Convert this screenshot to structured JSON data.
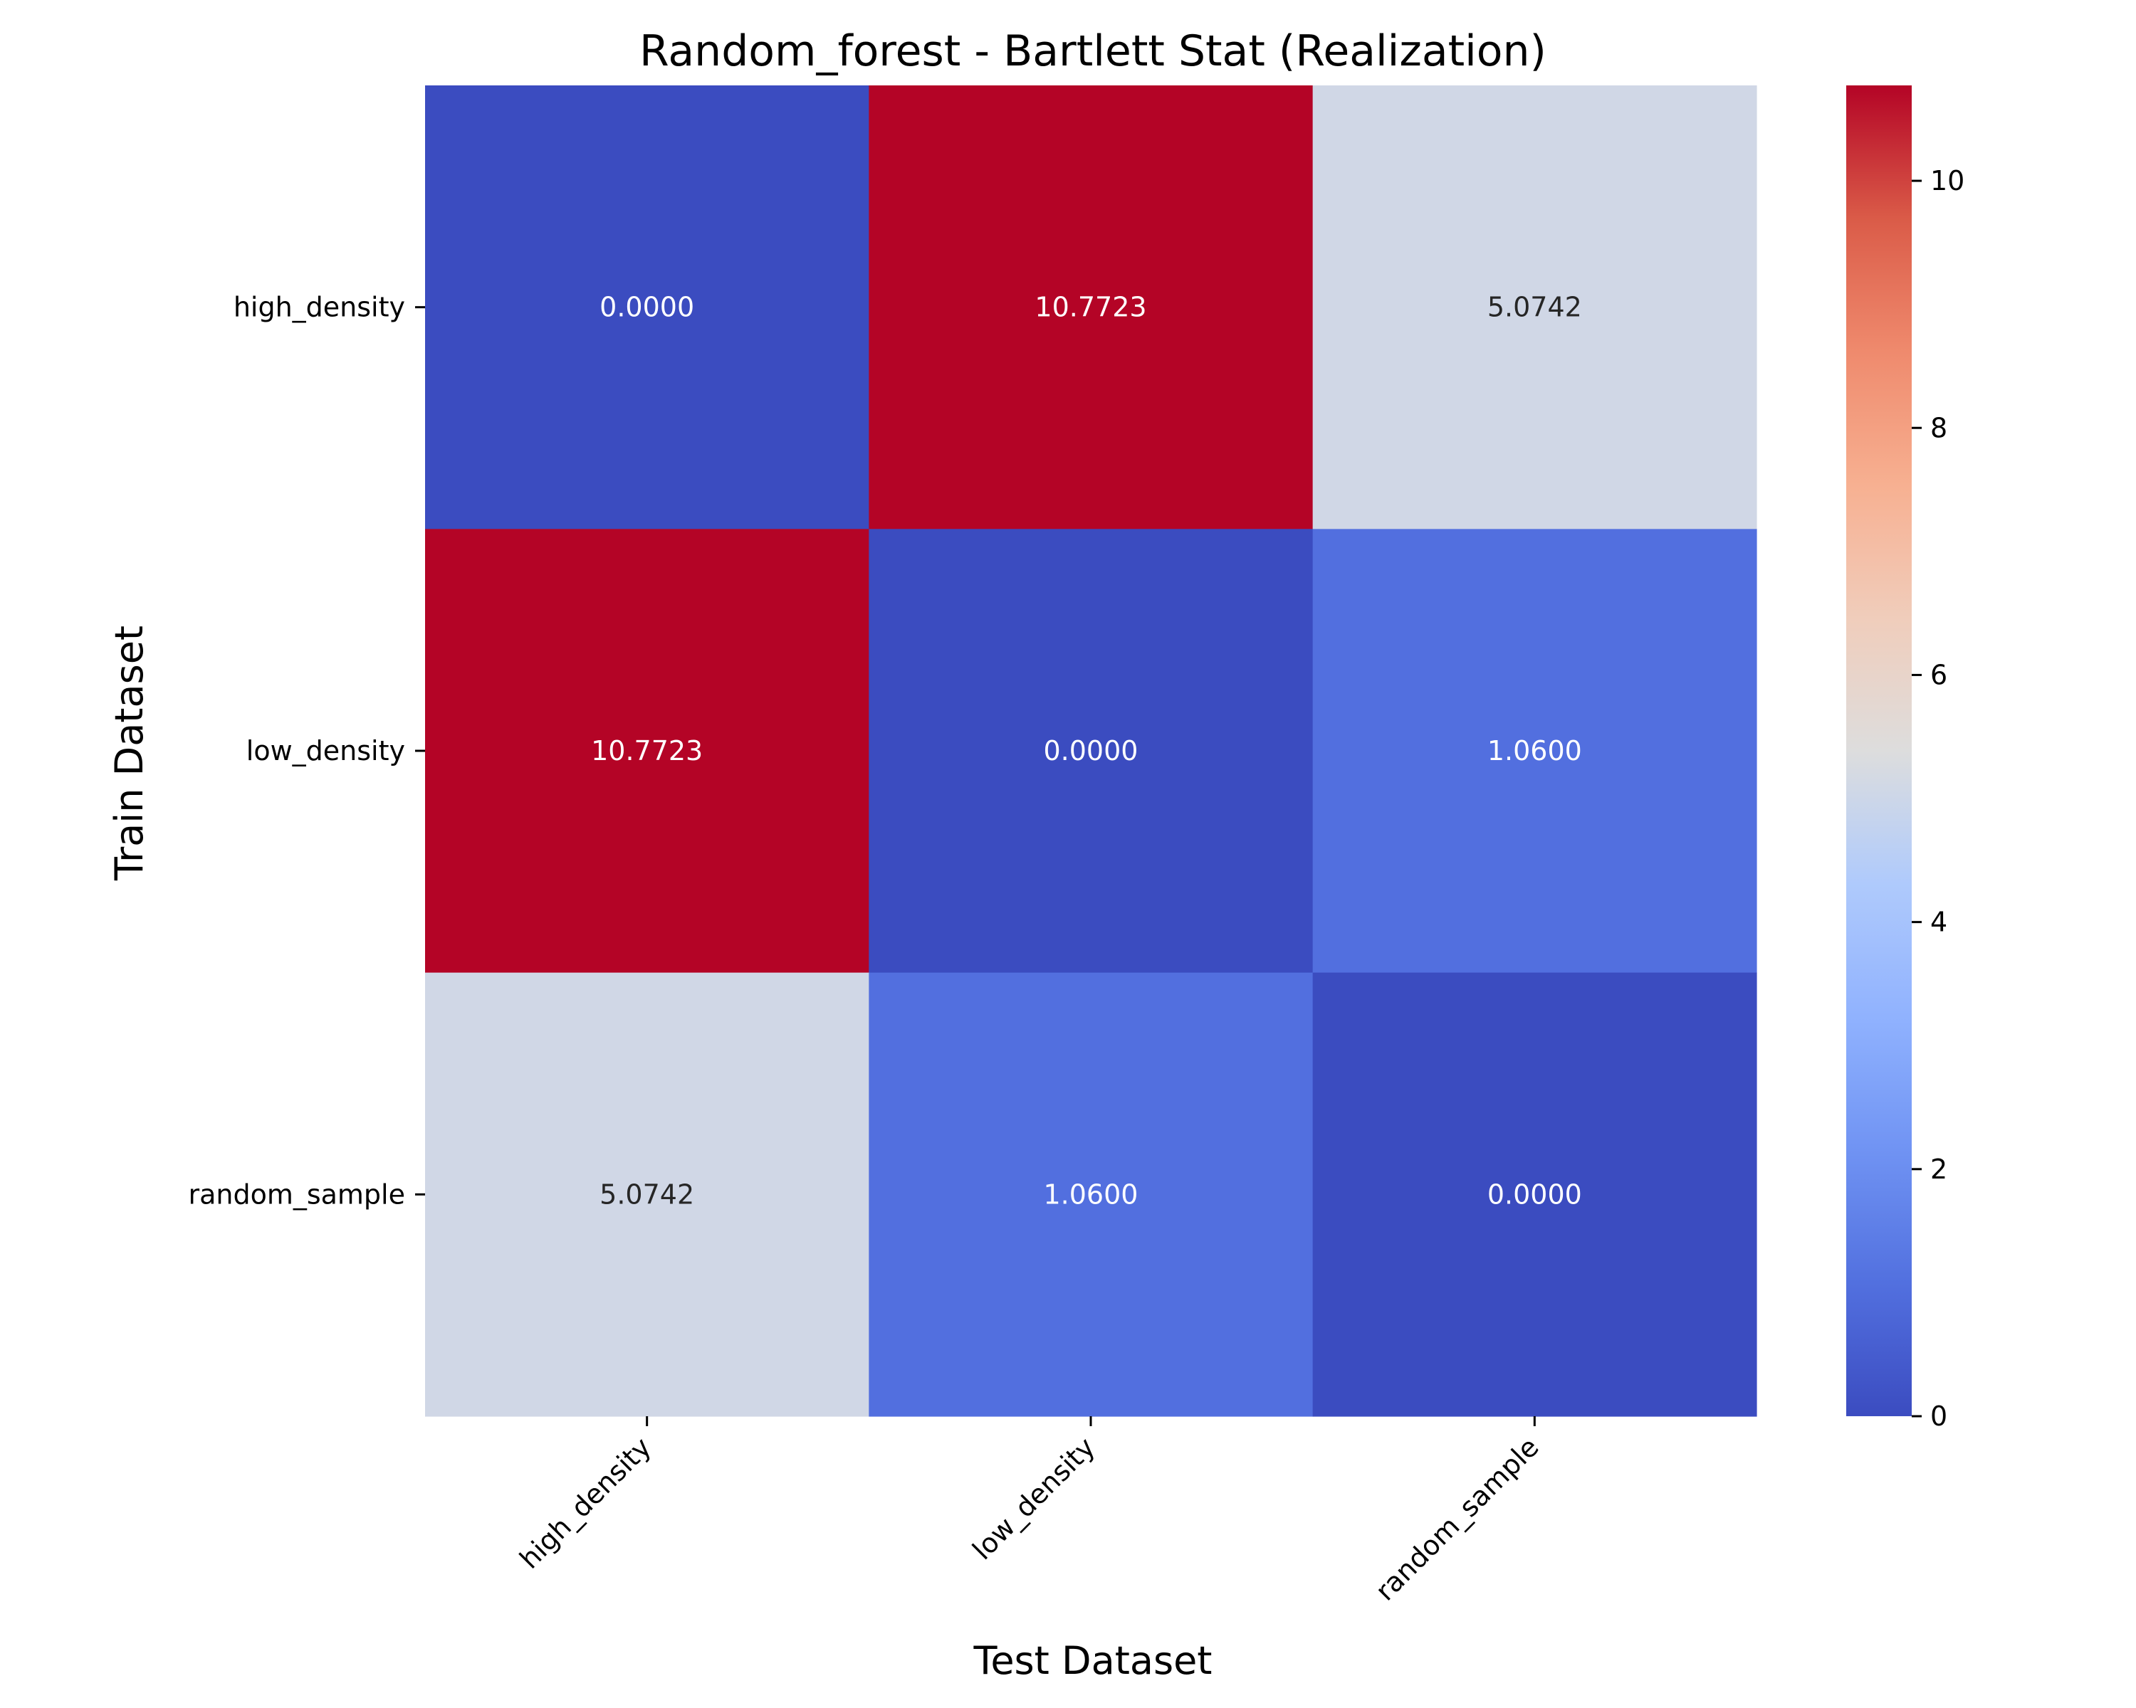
{
  "chart_data": {
    "type": "heatmap",
    "title": "Random_forest - Bartlett Stat (Realization)",
    "xlabel": "Test Dataset",
    "ylabel": "Train Dataset",
    "x_categories": [
      "high_density",
      "low_density",
      "random_sample"
    ],
    "y_categories": [
      "high_density",
      "low_density",
      "random_sample"
    ],
    "values": [
      [
        0.0,
        10.7723,
        5.0742
      ],
      [
        10.7723,
        0.0,
        1.06
      ],
      [
        5.0742,
        1.06,
        0.0
      ]
    ],
    "value_labels": [
      [
        "0.0000",
        "10.7723",
        "5.0742"
      ],
      [
        "10.7723",
        "0.0000",
        "1.0600"
      ],
      [
        "5.0742",
        "1.0600",
        "0.0000"
      ]
    ],
    "colormap": "coolwarm",
    "colorbar": {
      "range": [
        0,
        10.7723
      ],
      "ticks": [
        0,
        2,
        4,
        6,
        8,
        10
      ],
      "tick_labels": [
        "0",
        "2",
        "4",
        "6",
        "8",
        "10"
      ]
    }
  }
}
